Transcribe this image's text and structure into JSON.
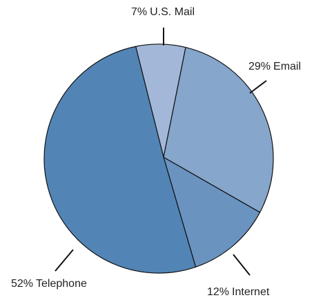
{
  "chart_data": {
    "type": "pie",
    "categories": [
      "U.S. Mail",
      "Email",
      "Internet",
      "Telephone"
    ],
    "values": [
      7,
      29,
      12,
      52
    ],
    "value_labels": [
      "7%",
      "29%",
      "12%",
      "52%"
    ],
    "colors": [
      "#a3b8d8",
      "#86a6cb",
      "#6a93c0",
      "#5285b5"
    ]
  }
}
